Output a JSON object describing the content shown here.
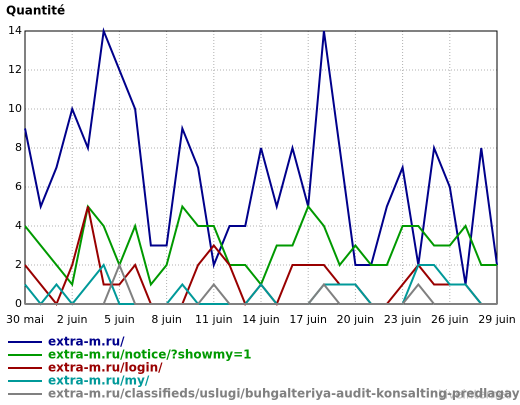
{
  "chart_data": {
    "type": "line",
    "title": "Quantité",
    "categories": [
      "30 mai",
      null,
      null,
      "2 juin",
      null,
      null,
      "5 juin",
      null,
      null,
      "8 juin",
      null,
      null,
      "11 juin",
      null,
      null,
      "14 juin",
      null,
      null,
      "17 juin",
      null,
      null,
      "20 juin",
      null,
      null,
      "23 juin",
      null,
      null,
      "26 juin",
      null,
      null,
      "29 juin"
    ],
    "ylim": [
      0,
      14
    ],
    "yticks": [
      0,
      2,
      4,
      6,
      8,
      10,
      12,
      14
    ],
    "grid": true,
    "series": [
      {
        "name": "extra-m.ru/",
        "color": "#00008b",
        "values": [
          9,
          5,
          7,
          10,
          8,
          14,
          12,
          10,
          3,
          3,
          9,
          7,
          2,
          4,
          4,
          8,
          5,
          8,
          5,
          14,
          8,
          2,
          2,
          5,
          7,
          2,
          8,
          6,
          1,
          8,
          2
        ]
      },
      {
        "name": "extra-m.ru/notice/?showmy=1",
        "color": "#009900",
        "values": [
          4,
          3,
          2,
          1,
          5,
          4,
          2,
          4,
          1,
          2,
          5,
          4,
          4,
          2,
          2,
          1,
          3,
          3,
          5,
          4,
          2,
          3,
          2,
          2,
          4,
          4,
          3,
          3,
          4,
          2,
          2
        ]
      },
      {
        "name": "extra-m.ru/login/",
        "color": "#990000",
        "values": [
          2,
          1,
          0,
          2,
          5,
          1,
          1,
          2,
          0,
          0,
          0,
          2,
          3,
          2,
          0,
          1,
          0,
          2,
          2,
          2,
          1,
          1,
          0,
          0,
          1,
          2,
          1,
          1,
          1,
          0,
          0
        ]
      },
      {
        "name": "extra-m.ru/my/",
        "color": "#009999",
        "values": [
          1,
          0,
          1,
          0,
          1,
          2,
          0,
          0,
          0,
          0,
          1,
          0,
          0,
          0,
          0,
          1,
          0,
          0,
          0,
          1,
          1,
          1,
          0,
          0,
          0,
          2,
          2,
          1,
          1,
          0,
          0
        ]
      },
      {
        "name": "extra-m.ru/classifieds/uslugi/buhgalteriya-audit-konsalting-predlagayu/all/",
        "color": "#808080",
        "values": [
          0,
          0,
          0,
          0,
          0,
          0,
          2,
          0,
          0,
          0,
          0,
          0,
          1,
          0,
          0,
          0,
          0,
          0,
          0,
          1,
          0,
          0,
          0,
          0,
          0,
          1,
          0,
          0,
          0,
          0,
          0
        ]
      }
    ],
    "watermark": "Liveinternet"
  }
}
